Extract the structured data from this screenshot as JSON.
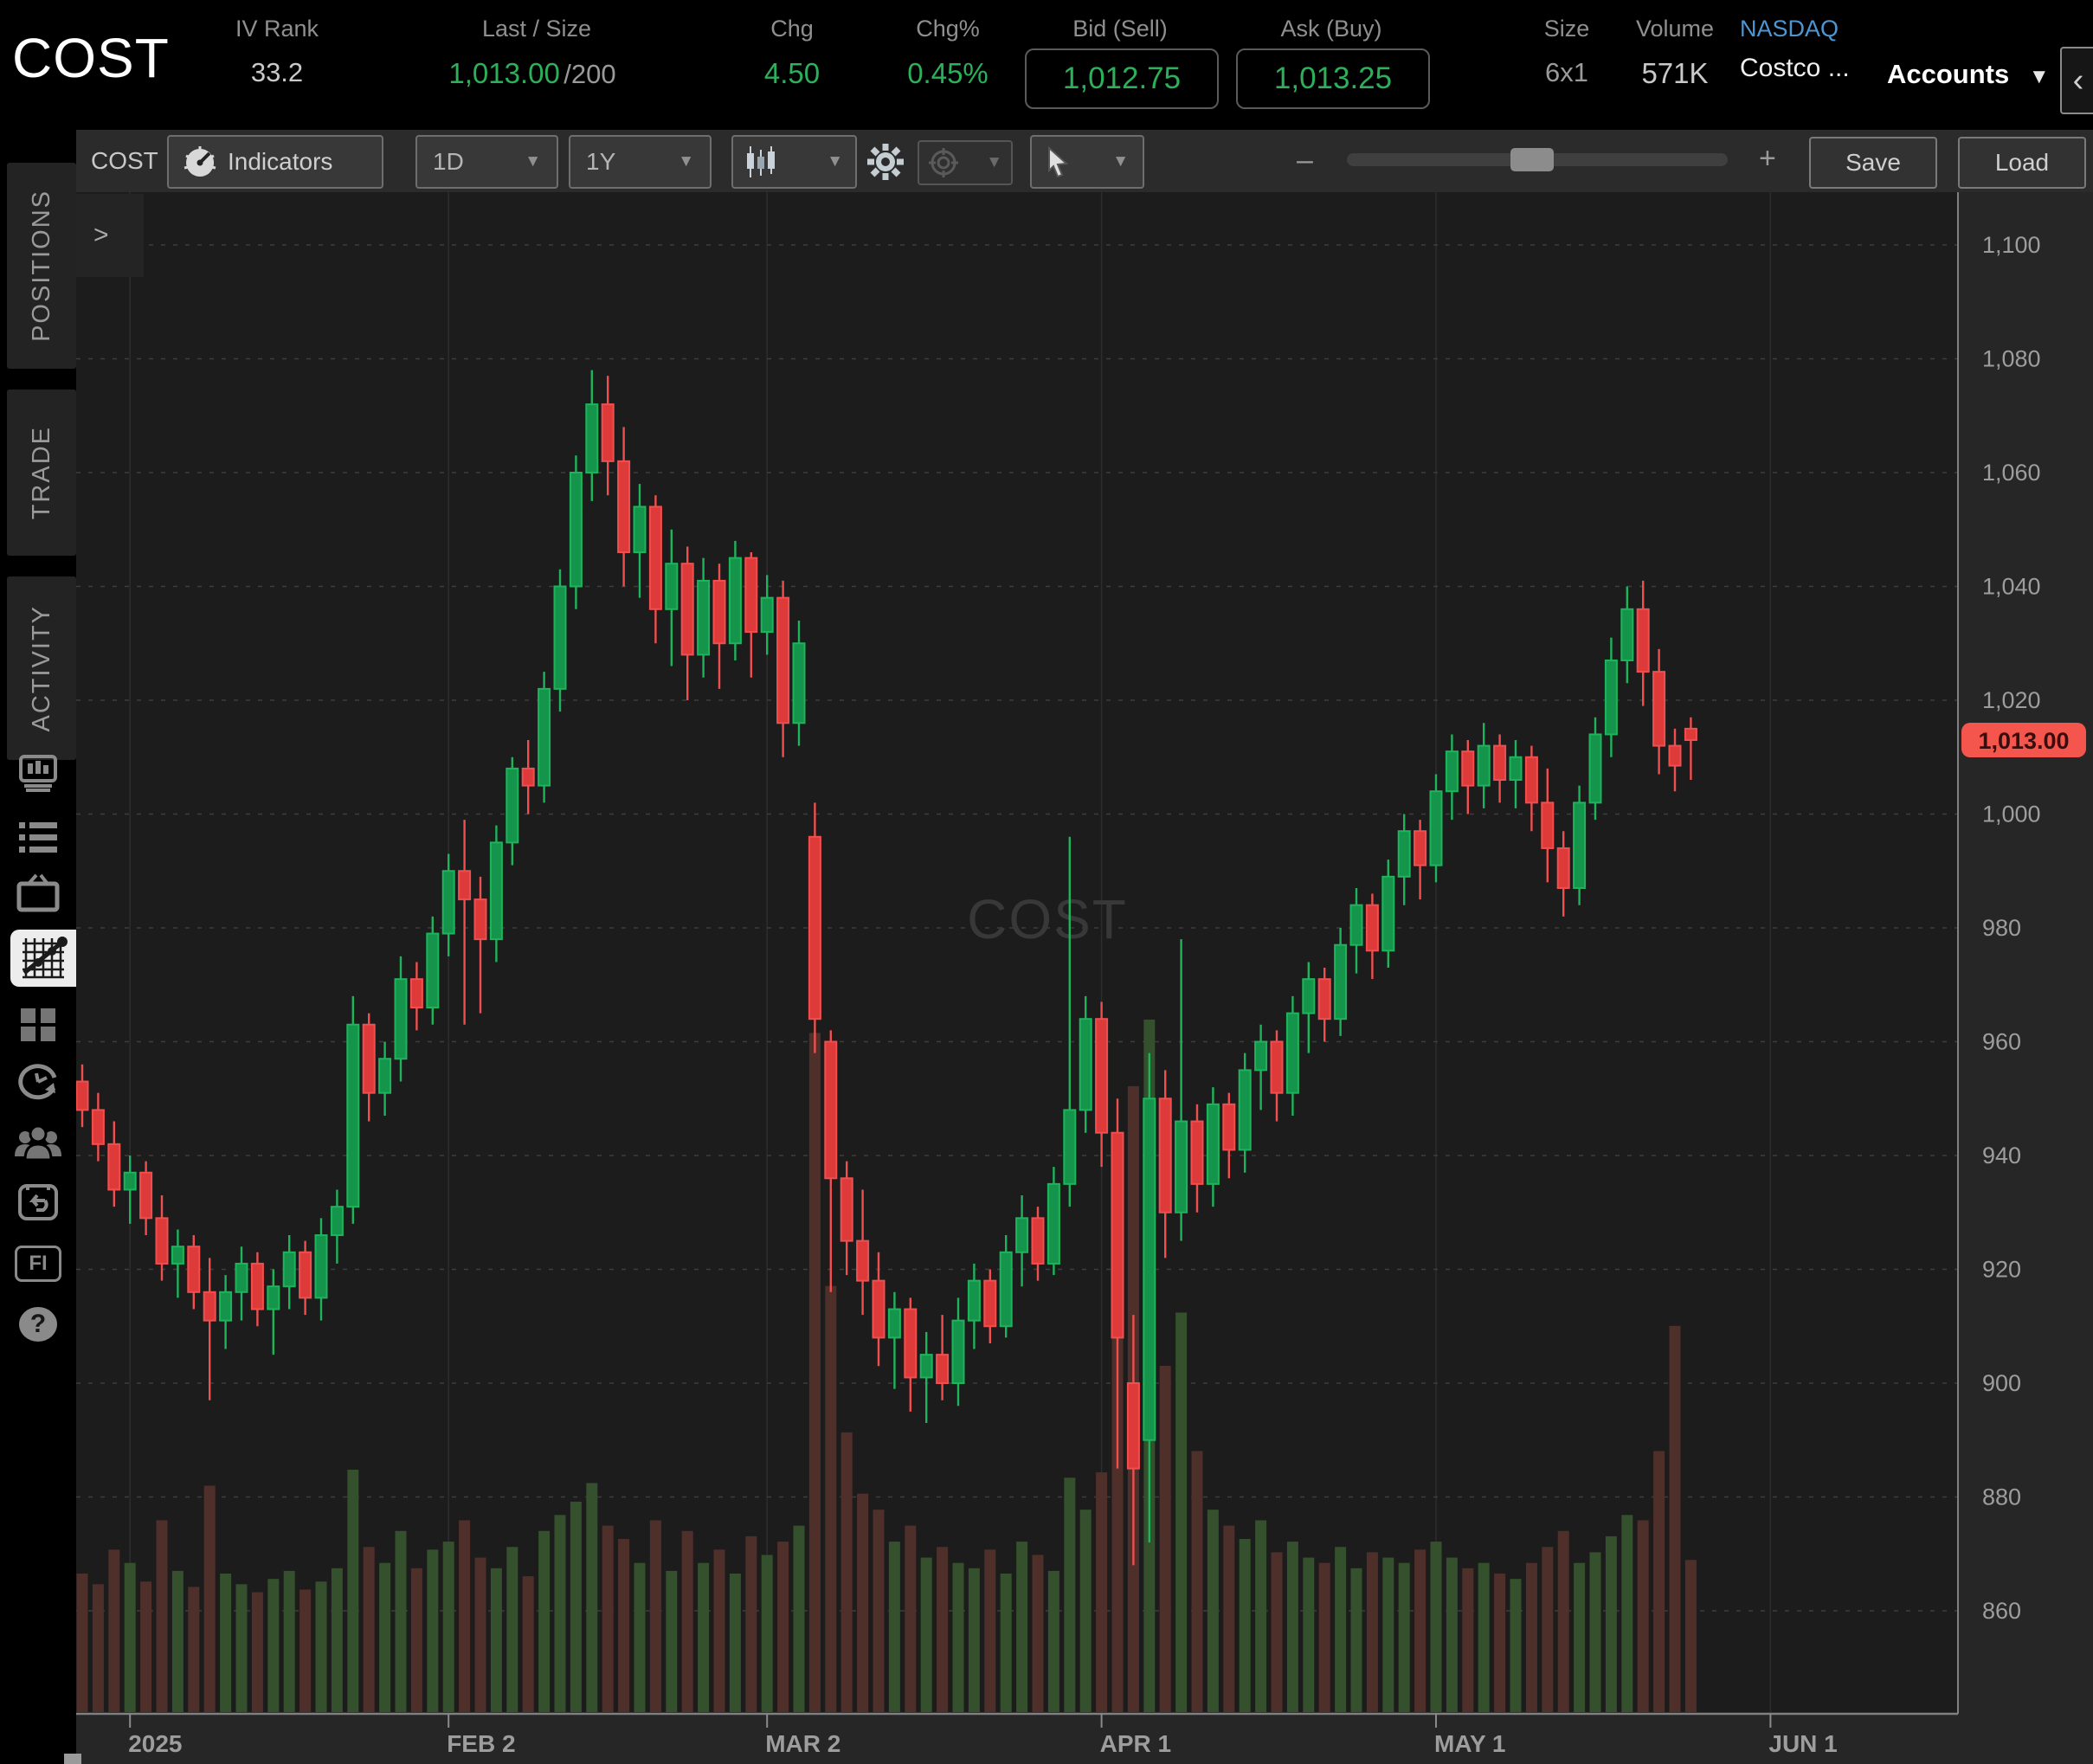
{
  "header": {
    "ticker": "COST",
    "iv_rank_label": "IV Rank",
    "iv_rank_value": "33.2",
    "last_size_label": "Last / Size",
    "last_value": "1,013.00",
    "size_suffix": "/200",
    "chg_label": "Chg",
    "chg_value": "4.50",
    "chg_pct_label": "Chg%",
    "chg_pct_value": "0.45%",
    "bid_label": "Bid (Sell)",
    "bid_value": "1,012.75",
    "ask_label": "Ask (Buy)",
    "ask_value": "1,013.25",
    "size_label": "Size",
    "size_value": "6x1",
    "volume_label": "Volume",
    "volume_value": "571K",
    "exchange": "NASDAQ",
    "company": "Costco ...",
    "accounts_label": "Accounts",
    "collapse_icon": "‹"
  },
  "sidebar": {
    "tabs": [
      {
        "label": "POSITIONS"
      },
      {
        "label": "TRADE"
      },
      {
        "label": "ACTIVITY"
      }
    ],
    "fi_label": "FI",
    "help_glyph": "?"
  },
  "toolbar": {
    "symbol": "COST",
    "indicators_label": "Indicators",
    "timeframe_value": "1D",
    "range_value": "1Y",
    "zoom_minus": "–",
    "zoom_plus": "+",
    "save_label": "Save",
    "load_label": "Load"
  },
  "chart": {
    "expander": ">",
    "watermark": "COST",
    "price_tag": "1,013.00",
    "colors": {
      "up_stroke": "#1db45c",
      "up_fill": "#15944b",
      "down_stroke": "#ef4f4f",
      "down_fill": "#de3a3a",
      "vol_up": "#34502d",
      "vol_down": "#4f2f2a",
      "plot_bg": "#1c1c1c",
      "axis_bg": "#262626",
      "hgrid": "#3d3d3d",
      "vgrid": "#2d2d2d",
      "axis_line": "#808080",
      "axis_text": "#9d9d9d",
      "tag_bg": "#f4564d",
      "tag_text": "#3a0c0c",
      "watermark": "#383838"
    },
    "y_axis": {
      "ticks": [
        {
          "v": 1100,
          "label": "1,100"
        },
        {
          "v": 1080,
          "label": "1,080"
        },
        {
          "v": 1060,
          "label": "1,060"
        },
        {
          "v": 1040,
          "label": "1,040"
        },
        {
          "v": 1020,
          "label": "1,020"
        },
        {
          "v": 1000,
          "label": "1,000"
        },
        {
          "v": 980,
          "label": "980"
        },
        {
          "v": 960,
          "label": "960"
        },
        {
          "v": 940,
          "label": "940"
        },
        {
          "v": 920,
          "label": "920"
        },
        {
          "v": 900,
          "label": "900"
        },
        {
          "v": 880,
          "label": "880"
        },
        {
          "v": 860,
          "label": "860"
        }
      ]
    },
    "x_ticks": [
      {
        "label": "2025",
        "i": 3
      },
      {
        "label": "FEB 2",
        "i": 23
      },
      {
        "label": "MAR 2",
        "i": 43
      },
      {
        "label": "APR 1",
        "i": 64
      },
      {
        "label": "MAY 1",
        "i": 85
      },
      {
        "label": "JUN 1",
        "i": 106
      }
    ]
  },
  "chart_data": {
    "type": "candlestick",
    "symbol": "COST",
    "timeframe": "1D",
    "range": "1Y",
    "last_price": 1013.0,
    "price_axis": {
      "min": 860,
      "max": 1100,
      "step": 20
    },
    "volume_unit": "K",
    "ohlcv": [
      [
        953,
        956,
        945,
        948,
        520
      ],
      [
        948,
        951,
        939,
        942,
        480
      ],
      [
        942,
        946,
        931,
        934,
        610
      ],
      [
        934,
        940,
        928,
        937,
        560
      ],
      [
        937,
        939,
        926,
        929,
        490
      ],
      [
        929,
        933,
        918,
        921,
        720
      ],
      [
        921,
        927,
        915,
        924,
        530
      ],
      [
        924,
        926,
        913,
        916,
        470
      ],
      [
        916,
        922,
        897,
        911,
        850
      ],
      [
        911,
        919,
        906,
        916,
        520
      ],
      [
        916,
        924,
        911,
        921,
        480
      ],
      [
        921,
        923,
        910,
        913,
        450
      ],
      [
        913,
        920,
        905,
        917,
        500
      ],
      [
        917,
        926,
        913,
        923,
        530
      ],
      [
        923,
        925,
        912,
        915,
        460
      ],
      [
        915,
        929,
        911,
        926,
        490
      ],
      [
        926,
        934,
        921,
        931,
        540
      ],
      [
        931,
        968,
        928,
        963,
        910
      ],
      [
        963,
        965,
        946,
        951,
        620
      ],
      [
        951,
        960,
        947,
        957,
        560
      ],
      [
        957,
        975,
        953,
        971,
        680
      ],
      [
        971,
        974,
        962,
        966,
        540
      ],
      [
        966,
        982,
        963,
        979,
        610
      ],
      [
        979,
        993,
        975,
        990,
        640
      ],
      [
        990,
        999,
        963,
        985,
        720
      ],
      [
        985,
        989,
        965,
        978,
        580
      ],
      [
        978,
        998,
        974,
        995,
        540
      ],
      [
        995,
        1010,
        991,
        1008,
        620
      ],
      [
        1008,
        1013,
        1000,
        1005,
        510
      ],
      [
        1005,
        1025,
        1002,
        1022,
        680
      ],
      [
        1022,
        1043,
        1018,
        1040,
        740
      ],
      [
        1040,
        1063,
        1036,
        1060,
        790
      ],
      [
        1060,
        1078,
        1055,
        1072,
        860
      ],
      [
        1072,
        1077,
        1056,
        1062,
        700
      ],
      [
        1062,
        1068,
        1040,
        1046,
        650
      ],
      [
        1046,
        1058,
        1038,
        1054,
        560
      ],
      [
        1054,
        1056,
        1030,
        1036,
        720
      ],
      [
        1036,
        1050,
        1026,
        1044,
        530
      ],
      [
        1044,
        1047,
        1020,
        1028,
        680
      ],
      [
        1028,
        1045,
        1024,
        1041,
        560
      ],
      [
        1041,
        1044,
        1022,
        1030,
        610
      ],
      [
        1030,
        1048,
        1027,
        1045,
        520
      ],
      [
        1045,
        1046,
        1024,
        1032,
        660
      ],
      [
        1032,
        1042,
        1028,
        1038,
        590
      ],
      [
        1038,
        1041,
        1010,
        1016,
        640
      ],
      [
        1016,
        1034,
        1012,
        1030,
        700
      ],
      [
        996,
        1002,
        958,
        964,
        2550
      ],
      [
        960,
        962,
        916,
        936,
        1600
      ],
      [
        936,
        939,
        919,
        925,
        1050
      ],
      [
        925,
        934,
        912,
        918,
        820
      ],
      [
        918,
        923,
        903,
        908,
        760
      ],
      [
        908,
        916,
        899,
        913,
        640
      ],
      [
        913,
        915,
        895,
        901,
        700
      ],
      [
        901,
        909,
        893,
        905,
        580
      ],
      [
        905,
        912,
        897,
        900,
        620
      ],
      [
        900,
        915,
        896,
        911,
        560
      ],
      [
        911,
        921,
        906,
        918,
        540
      ],
      [
        918,
        920,
        907,
        910,
        610
      ],
      [
        910,
        926,
        908,
        923,
        520
      ],
      [
        923,
        933,
        917,
        929,
        640
      ],
      [
        929,
        931,
        918,
        921,
        590
      ],
      [
        921,
        938,
        919,
        935,
        530
      ],
      [
        935,
        996,
        931,
        948,
        880
      ],
      [
        948,
        968,
        944,
        964,
        760
      ],
      [
        964,
        967,
        938,
        944,
        900
      ],
      [
        944,
        950,
        885,
        908,
        1850
      ],
      [
        900,
        912,
        868,
        885,
        2350
      ],
      [
        890,
        958,
        872,
        950,
        2600
      ],
      [
        950,
        955,
        922,
        930,
        1300
      ],
      [
        930,
        978,
        925,
        946,
        1500
      ],
      [
        946,
        949,
        930,
        935,
        980
      ],
      [
        935,
        952,
        931,
        949,
        760
      ],
      [
        949,
        951,
        936,
        941,
        700
      ],
      [
        941,
        958,
        937,
        955,
        650
      ],
      [
        955,
        963,
        948,
        960,
        720
      ],
      [
        960,
        962,
        946,
        951,
        600
      ],
      [
        951,
        968,
        947,
        965,
        640
      ],
      [
        965,
        974,
        958,
        971,
        580
      ],
      [
        971,
        973,
        960,
        964,
        560
      ],
      [
        964,
        980,
        961,
        977,
        620
      ],
      [
        977,
        987,
        972,
        984,
        540
      ],
      [
        984,
        986,
        971,
        976,
        600
      ],
      [
        976,
        992,
        973,
        989,
        580
      ],
      [
        989,
        1000,
        984,
        997,
        560
      ],
      [
        997,
        999,
        985,
        991,
        610
      ],
      [
        991,
        1007,
        988,
        1004,
        640
      ],
      [
        1004,
        1014,
        999,
        1011,
        580
      ],
      [
        1011,
        1013,
        1000,
        1005,
        540
      ],
      [
        1005,
        1016,
        1001,
        1012,
        560
      ],
      [
        1012,
        1014,
        1002,
        1006,
        520
      ],
      [
        1006,
        1013,
        1001,
        1010,
        500
      ],
      [
        1010,
        1012,
        997,
        1002,
        560
      ],
      [
        1002,
        1008,
        988,
        994,
        620
      ],
      [
        994,
        997,
        982,
        987,
        680
      ],
      [
        987,
        1005,
        984,
        1002,
        560
      ],
      [
        1002,
        1017,
        999,
        1014,
        600
      ],
      [
        1014,
        1031,
        1010,
        1027,
        660
      ],
      [
        1027,
        1040,
        1023,
        1036,
        740
      ],
      [
        1036,
        1041,
        1019,
        1025,
        720
      ],
      [
        1025,
        1029,
        1007,
        1012,
        980
      ],
      [
        1012,
        1015,
        1004,
        1008.5,
        1450
      ],
      [
        1015,
        1017,
        1006,
        1013,
        571
      ]
    ]
  }
}
